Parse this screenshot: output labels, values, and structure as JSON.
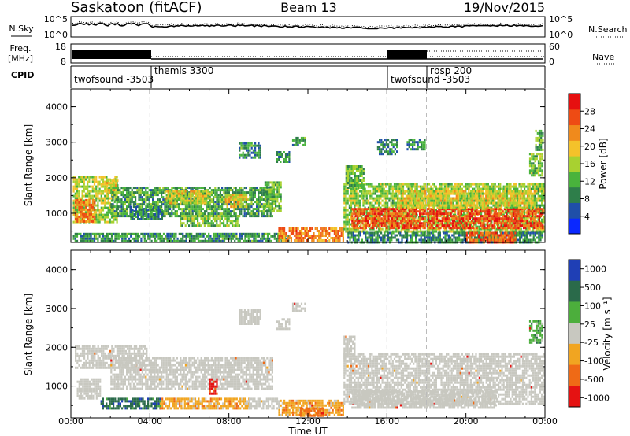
{
  "header": {
    "station": "Saskatoon (fitACF)",
    "beam": "Beam 13",
    "date": "19/Nov/2015"
  },
  "top_panels": {
    "nsky_label": "N.Sky",
    "nsky_ticks": [
      "10^5",
      "10^0"
    ],
    "nsearch_label": "N.Search",
    "nsearch_ticks": [
      "10^5",
      "10^0"
    ],
    "freq_label": "Freq.",
    "freq_unit": "[MHz]",
    "freq_ticks": [
      "18",
      "8"
    ],
    "nave_label": "Nave",
    "nave_ticks": [
      "60",
      "0"
    ],
    "cpid_label": "CPID",
    "cpid_segments": [
      {
        "label": "twofsound -3503",
        "start_hour": 0,
        "end_hour": 4
      },
      {
        "label": "themis 3300",
        "start_hour": 4,
        "end_hour": 16
      },
      {
        "label": "twofsound -3503",
        "start_hour": 16,
        "end_hour": 18
      },
      {
        "label": "rbsp 200",
        "start_hour": 18,
        "end_hour": 24
      }
    ]
  },
  "colors": {
    "power_scale": [
      "#0a28ff",
      "#1f4fa8",
      "#2e7e4a",
      "#49b33c",
      "#a8d130",
      "#f4c22a",
      "#f08a1c",
      "#ee4b14",
      "#e61010"
    ],
    "velocity_scale": [
      "#1f3fb5",
      "#2a6a4a",
      "#4cae3c",
      "#c8c8c0",
      "#f1a521",
      "#ef6a16",
      "#e51212"
    ],
    "ground_scatter": "#c8c8c0"
  },
  "chart_data": [
    {
      "type": "heatmap",
      "panel": "power",
      "ylabel": "Slant Range [km]",
      "ylim": [
        180,
        4500
      ],
      "yticks": [
        "4000",
        "3000",
        "2000",
        "1000"
      ],
      "xlim": [
        0,
        24
      ],
      "colorbar": {
        "label": "Power [dB]",
        "ticks": [
          "28",
          "24",
          "20",
          "16",
          "12",
          "8",
          "4"
        ],
        "range": [
          0,
          32
        ]
      },
      "regions": [
        {
          "t0": 0.1,
          "t1": 2.3,
          "r0": 750,
          "r1": 2050,
          "level": 16
        },
        {
          "t0": 0.2,
          "t1": 1.2,
          "r0": 800,
          "r1": 1400,
          "level": 24
        },
        {
          "t0": 1.8,
          "t1": 2.4,
          "r0": 1500,
          "r1": 1950,
          "level": 18
        },
        {
          "t0": 2.0,
          "t1": 10.2,
          "r0": 950,
          "r1": 1750,
          "level": 11
        },
        {
          "t0": 4.8,
          "t1": 7.0,
          "r0": 1300,
          "r1": 1650,
          "level": 18
        },
        {
          "t0": 7.8,
          "t1": 8.9,
          "r0": 1200,
          "r1": 1550,
          "level": 20
        },
        {
          "t0": 3.0,
          "t1": 4.6,
          "r0": 850,
          "r1": 1200,
          "level": 9
        },
        {
          "t0": 5.5,
          "t1": 8.5,
          "r0": 650,
          "r1": 950,
          "level": 14
        },
        {
          "t0": 0.1,
          "t1": 11.0,
          "r0": 200,
          "r1": 450,
          "level": 10
        },
        {
          "t0": 10.5,
          "t1": 13.8,
          "r0": 250,
          "r1": 600,
          "level": 24
        },
        {
          "t0": 9.8,
          "t1": 10.6,
          "r0": 1100,
          "r1": 1900,
          "level": 13
        },
        {
          "t0": 8.5,
          "t1": 9.6,
          "r0": 2600,
          "r1": 3000,
          "level": 10
        },
        {
          "t0": 10.4,
          "t1": 11.1,
          "r0": 2450,
          "r1": 2750,
          "level": 10
        },
        {
          "t0": 11.2,
          "t1": 11.9,
          "r0": 2950,
          "r1": 3150,
          "level": 10
        },
        {
          "t0": 13.8,
          "t1": 23.9,
          "r0": 500,
          "r1": 1850,
          "level": 15
        },
        {
          "t0": 14.2,
          "t1": 23.9,
          "r0": 600,
          "r1": 1150,
          "level": 27
        },
        {
          "t0": 16.5,
          "t1": 23.5,
          "r0": 1150,
          "r1": 1650,
          "level": 18
        },
        {
          "t0": 13.9,
          "t1": 14.8,
          "r0": 1700,
          "r1": 2350,
          "level": 13
        },
        {
          "t0": 15.5,
          "t1": 16.5,
          "r0": 2700,
          "r1": 3100,
          "level": 8
        },
        {
          "t0": 17.0,
          "t1": 17.9,
          "r0": 2800,
          "r1": 3100,
          "level": 10
        },
        {
          "t0": 23.2,
          "t1": 23.9,
          "r0": 2100,
          "r1": 2700,
          "level": 14
        },
        {
          "t0": 23.5,
          "t1": 23.9,
          "r0": 2800,
          "r1": 3350,
          "level": 12
        },
        {
          "t0": 14.0,
          "t1": 23.9,
          "r0": 200,
          "r1": 480,
          "level": 9
        },
        {
          "t0": 20.0,
          "t1": 22.5,
          "r0": 200,
          "r1": 480,
          "level": 26
        }
      ]
    },
    {
      "type": "heatmap",
      "panel": "velocity",
      "ylabel": "Slant Range [km]",
      "ylim": [
        180,
        4500
      ],
      "yticks": [
        "4000",
        "3000",
        "2000",
        "1000"
      ],
      "xlim": [
        0,
        24
      ],
      "xticks": [
        "00:00",
        "04:00",
        "08:00",
        "12:00",
        "16:00",
        "20:00",
        "00:00"
      ],
      "xlabel": "Time UT",
      "colorbar": {
        "label": "Velocity [m s⁻¹]",
        "ticks": [
          "1000",
          "500",
          "100",
          "25",
          "-25",
          "-100",
          "-500",
          "-1000"
        ]
      },
      "regions": [
        {
          "t0": 0.2,
          "t1": 3.8,
          "r0": 1500,
          "r1": 2050,
          "vclass": 3
        },
        {
          "t0": 2.0,
          "t1": 10.2,
          "r0": 950,
          "r1": 1750,
          "vclass": 3
        },
        {
          "t0": 0.3,
          "t1": 1.5,
          "r0": 700,
          "r1": 1200,
          "vclass": 3
        },
        {
          "t0": 1.5,
          "t1": 4.5,
          "r0": 400,
          "r1": 700,
          "vclass": 1
        },
        {
          "t0": 4.5,
          "t1": 9.0,
          "r0": 400,
          "r1": 700,
          "vclass": 4
        },
        {
          "t0": 9.0,
          "t1": 10.5,
          "r0": 450,
          "r1": 700,
          "vclass": 3
        },
        {
          "t0": 10.5,
          "t1": 13.8,
          "r0": 250,
          "r1": 650,
          "vclass": 4
        },
        {
          "t0": 11.6,
          "t1": 12.8,
          "r0": 250,
          "r1": 450,
          "vclass": 5
        },
        {
          "t0": 8.5,
          "t1": 9.6,
          "r0": 2600,
          "r1": 3000,
          "vclass": 3
        },
        {
          "t0": 10.4,
          "t1": 11.1,
          "r0": 2450,
          "r1": 2750,
          "vclass": 3
        },
        {
          "t0": 11.2,
          "t1": 11.9,
          "r0": 2950,
          "r1": 3150,
          "vclass": 3
        },
        {
          "t0": 13.8,
          "t1": 23.9,
          "r0": 550,
          "r1": 1850,
          "vclass": 3
        },
        {
          "t0": 14.2,
          "t1": 21.5,
          "r0": 450,
          "r1": 900,
          "vclass": 3
        },
        {
          "t0": 7.0,
          "t1": 7.4,
          "r0": 800,
          "r1": 1200,
          "vclass": 6
        },
        {
          "t0": 13.8,
          "t1": 14.4,
          "r0": 1700,
          "r1": 2300,
          "vclass": 3
        },
        {
          "t0": 23.2,
          "t1": 23.9,
          "r0": 2100,
          "r1": 2700,
          "vclass": 2
        }
      ]
    }
  ]
}
